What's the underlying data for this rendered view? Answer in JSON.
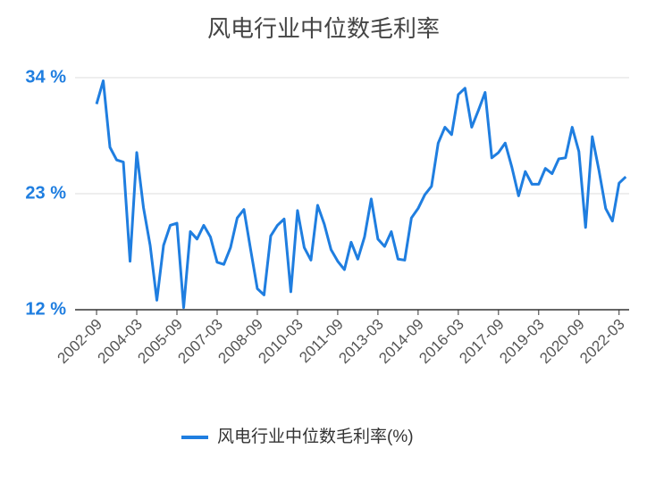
{
  "chart_data": {
    "type": "line",
    "title": "风电行业中位数毛利率",
    "categories": [
      "2002-09",
      null,
      null,
      null,
      null,
      null,
      "2004-03",
      null,
      null,
      null,
      null,
      null,
      "2005-09",
      null,
      null,
      null,
      null,
      null,
      "2007-03",
      null,
      null,
      null,
      null,
      null,
      "2008-09",
      null,
      null,
      null,
      null,
      null,
      "2010-03",
      null,
      null,
      null,
      null,
      null,
      "2011-09",
      null,
      null,
      null,
      null,
      null,
      "2013-03",
      null,
      null,
      null,
      null,
      null,
      "2014-09",
      null,
      null,
      null,
      null,
      null,
      "2016-03",
      null,
      null,
      null,
      null,
      null,
      "2017-09",
      null,
      null,
      null,
      null,
      null,
      "2019-03",
      null,
      null,
      null,
      null,
      null,
      "2020-09",
      null,
      null,
      null,
      null,
      null,
      "2022-03",
      null
    ],
    "series": [
      {
        "name": "风电行业中位数毛利率(%)",
        "color": "#1f7ee0",
        "values": [
          31.5,
          33.7,
          27.4,
          26.2,
          26.0,
          16.6,
          26.9,
          21.7,
          18.1,
          12.9,
          18.1,
          20.0,
          20.2,
          12.2,
          19.4,
          18.7,
          20.0,
          18.9,
          16.5,
          16.3,
          17.9,
          20.7,
          21.5,
          17.7,
          14.0,
          13.4,
          19.0,
          20.0,
          20.6,
          13.7,
          21.4,
          17.9,
          16.7,
          21.9,
          20.1,
          17.7,
          16.6,
          15.8,
          18.4,
          16.8,
          18.9,
          22.5,
          18.7,
          18.0,
          19.4,
          16.8,
          16.7,
          20.7,
          21.6,
          22.9,
          23.7,
          27.8,
          29.3,
          28.6,
          32.4,
          33.0,
          29.3,
          30.9,
          32.6,
          26.4,
          26.9,
          27.8,
          25.5,
          22.8,
          25.1,
          23.9,
          23.9,
          25.4,
          24.9,
          26.3,
          26.4,
          29.3,
          27.0,
          19.8,
          28.4,
          25.2,
          21.6,
          20.4,
          24.0,
          24.6
        ]
      }
    ],
    "ylim": [
      12,
      34
    ],
    "yticks": [
      {
        "value": 12,
        "label": "12 %"
      },
      {
        "value": 23,
        "label": "23 %"
      },
      {
        "value": 34,
        "label": "34 %"
      }
    ],
    "grid": true,
    "legend": "bottom"
  }
}
